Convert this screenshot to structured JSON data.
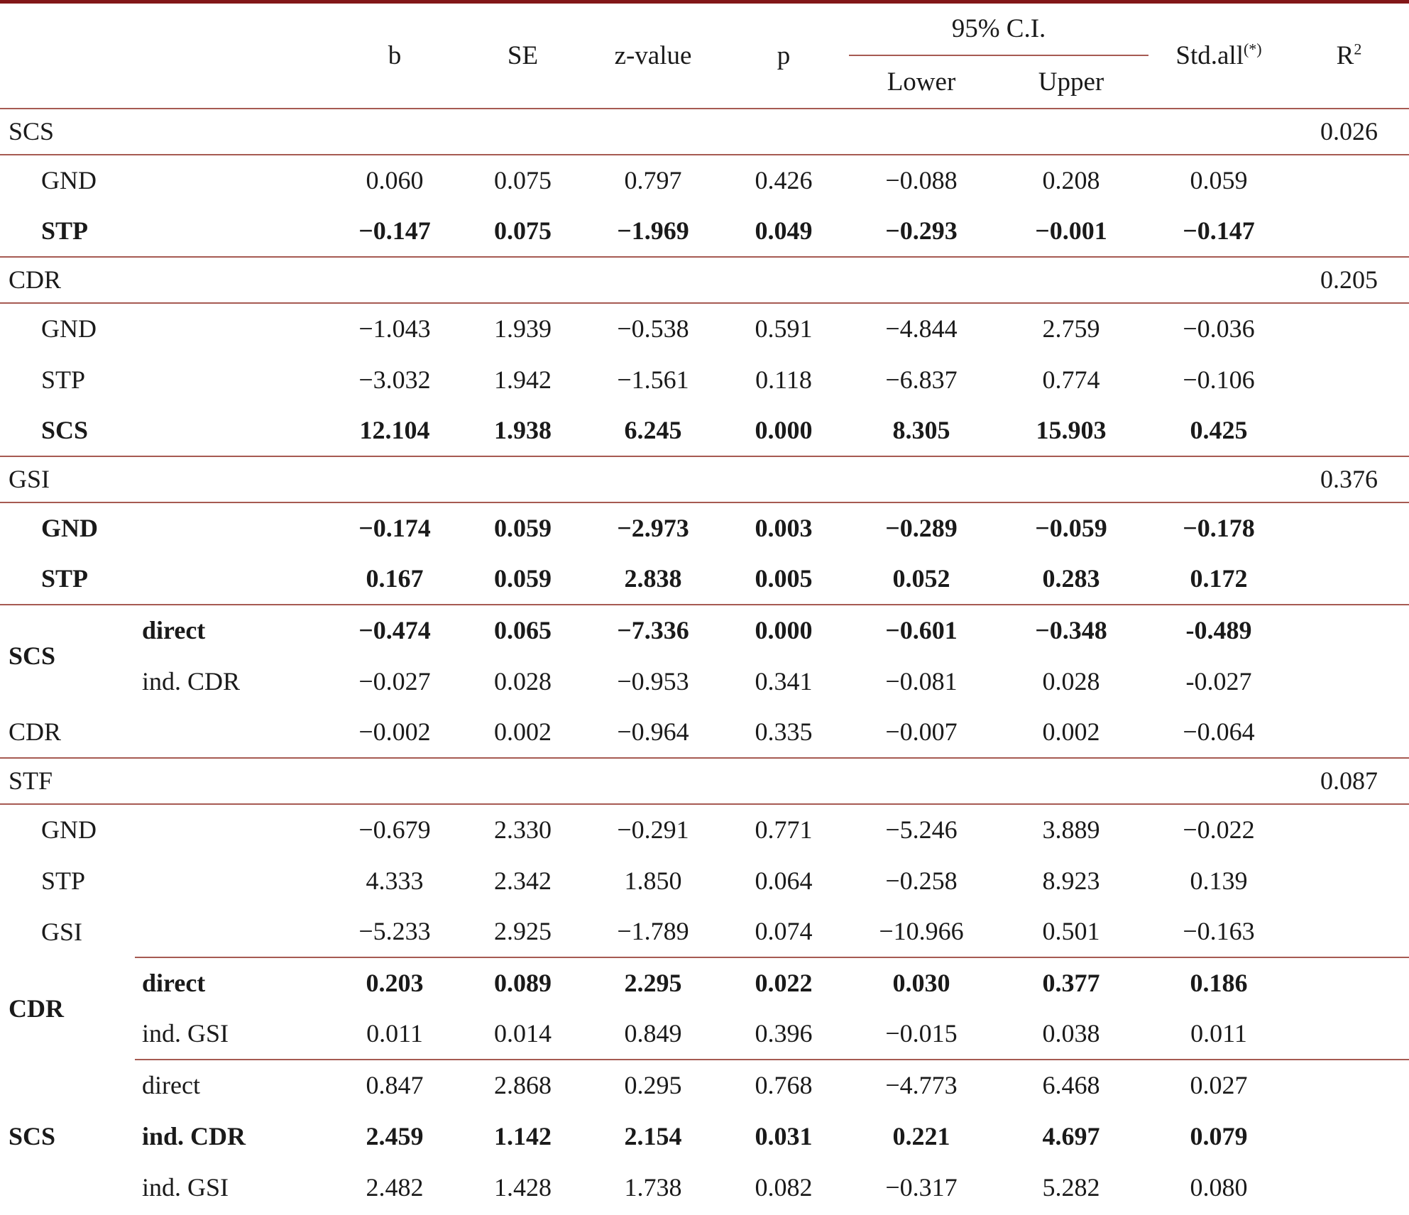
{
  "colors": {
    "rule": "#a65a52",
    "top_border": "#821718",
    "text": "#1a1a1a",
    "background": "#ffffff"
  },
  "table": {
    "header": {
      "b": "b",
      "se": "SE",
      "z": "z-value",
      "p": "p",
      "ci": "95% C.I.",
      "lower": "Lower",
      "upper": "Upper",
      "std": "Std.all",
      "std_sup": "(*)",
      "r2_base": "R",
      "r2_sup": "2"
    },
    "rows": [
      {
        "type": "section",
        "label": "SCS",
        "r2": "0.026",
        "bb": "line"
      },
      {
        "type": "data",
        "label": "GND",
        "indent": true,
        "b": "0.060",
        "se": "0.075",
        "z": "0.797",
        "p": "0.426",
        "lower": "−0.088",
        "upper": "0.208",
        "std": "0.059",
        "bb": "none"
      },
      {
        "type": "data",
        "label": "STP",
        "indent": true,
        "label_bold": true,
        "bold": true,
        "b": "−0.147",
        "se": "0.075",
        "z": "−1.969",
        "p": "0.049",
        "lower": "−0.293",
        "upper": "−0.001",
        "std": "−0.147",
        "bb": "line"
      },
      {
        "type": "section",
        "label": "CDR",
        "r2": "0.205",
        "bb": "line"
      },
      {
        "type": "data",
        "label": "GND",
        "indent": true,
        "b": "−1.043",
        "se": "1.939",
        "z": "−0.538",
        "p": "0.591",
        "lower": "−4.844",
        "upper": "2.759",
        "std": "−0.036",
        "bb": "none"
      },
      {
        "type": "data",
        "label": "STP",
        "indent": true,
        "b": "−3.032",
        "se": "1.942",
        "z": "−1.561",
        "p": "0.118",
        "lower": "−6.837",
        "upper": "0.774",
        "std": "−0.106",
        "bb": "none"
      },
      {
        "type": "data",
        "label": "SCS",
        "indent": true,
        "label_bold": true,
        "bold": true,
        "b": "12.104",
        "se": "1.938",
        "z": "6.245",
        "p": "0.000",
        "lower": "8.305",
        "upper": "15.903",
        "std": "0.425",
        "bb": "line"
      },
      {
        "type": "section",
        "label": "GSI",
        "r2": "0.376",
        "bb": "line"
      },
      {
        "type": "data",
        "label": "GND",
        "indent": true,
        "label_bold": true,
        "bold": true,
        "b": "−0.174",
        "se": "0.059",
        "z": "−2.973",
        "p": "0.003",
        "lower": "−0.289",
        "upper": "−0.059",
        "std": "−0.178",
        "bb": "none"
      },
      {
        "type": "data",
        "label": "STP",
        "indent": true,
        "label_bold": true,
        "bold": true,
        "b": "0.167",
        "se": "0.059",
        "z": "2.838",
        "p": "0.005",
        "lower": "0.052",
        "upper": "0.283",
        "std": "0.172",
        "bb": "line"
      },
      {
        "type": "data",
        "group": {
          "label": "SCS",
          "span": 2,
          "bold": true
        },
        "sublabel": "direct",
        "sublabel_bold": true,
        "bold": true,
        "b": "−0.474",
        "se": "0.065",
        "z": "−7.336",
        "p": "0.000",
        "lower": "−0.601",
        "upper": "−0.348",
        "std": "-0.489",
        "bb": "none"
      },
      {
        "type": "data",
        "in_group": true,
        "sublabel": "ind. CDR",
        "b": "−0.027",
        "se": "0.028",
        "z": "−0.953",
        "p": "0.341",
        "lower": "−0.081",
        "upper": "0.028",
        "std": "-0.027",
        "bb": "none"
      },
      {
        "type": "data",
        "label": "CDR",
        "b": "−0.002",
        "se": "0.002",
        "z": "−0.964",
        "p": "0.335",
        "lower": "−0.007",
        "upper": "0.002",
        "std": "−0.064",
        "bb": "line"
      },
      {
        "type": "section",
        "label": "STF",
        "r2": "0.087",
        "bb": "line"
      },
      {
        "type": "data",
        "label": "GND",
        "indent": true,
        "b": "−0.679",
        "se": "2.330",
        "z": "−0.291",
        "p": "0.771",
        "lower": "−5.246",
        "upper": "3.889",
        "std": "−0.022",
        "bb": "none"
      },
      {
        "type": "data",
        "label": "STP",
        "indent": true,
        "b": "4.333",
        "se": "2.342",
        "z": "1.850",
        "p": "0.064",
        "lower": "−0.258",
        "upper": "8.923",
        "std": "0.139",
        "bb": "none"
      },
      {
        "type": "data",
        "label": "GSI",
        "indent": true,
        "b": "−5.233",
        "se": "2.925",
        "z": "−1.789",
        "p": "0.074",
        "lower": "−10.966",
        "upper": "0.501",
        "std": "−0.163",
        "bb": "skipfirst"
      },
      {
        "type": "data",
        "group": {
          "label": "CDR",
          "span": 2,
          "bold": true
        },
        "sublabel": "direct",
        "sublabel_bold": true,
        "bold": true,
        "b": "0.203",
        "se": "0.089",
        "z": "2.295",
        "p": "0.022",
        "lower": "0.030",
        "upper": "0.377",
        "std": "0.186",
        "bb": "none"
      },
      {
        "type": "data",
        "in_group": true,
        "sublabel": "ind. GSI",
        "b": "0.011",
        "se": "0.014",
        "z": "0.849",
        "p": "0.396",
        "lower": "−0.015",
        "upper": "0.038",
        "std": "0.011",
        "bb": "line"
      },
      {
        "type": "data",
        "group": {
          "label": "SCS",
          "span": 3,
          "bold": true
        },
        "sublabel": "direct",
        "b": "0.847",
        "se": "2.868",
        "z": "0.295",
        "p": "0.768",
        "lower": "−4.773",
        "upper": "6.468",
        "std": "0.027",
        "bb": "none"
      },
      {
        "type": "data",
        "in_group": true,
        "sublabel": "ind. CDR",
        "sublabel_bold": true,
        "bold": true,
        "b": "2.459",
        "se": "1.142",
        "z": "2.154",
        "p": "0.031",
        "lower": "0.221",
        "upper": "4.697",
        "std": "0.079",
        "bb": "none"
      },
      {
        "type": "data",
        "in_group": true,
        "sublabel": "ind. GSI",
        "b": "2.482",
        "se": "1.428",
        "z": "1.738",
        "p": "0.082",
        "lower": "−0.317",
        "upper": "5.282",
        "std": "0.080",
        "bb": "none"
      }
    ]
  }
}
